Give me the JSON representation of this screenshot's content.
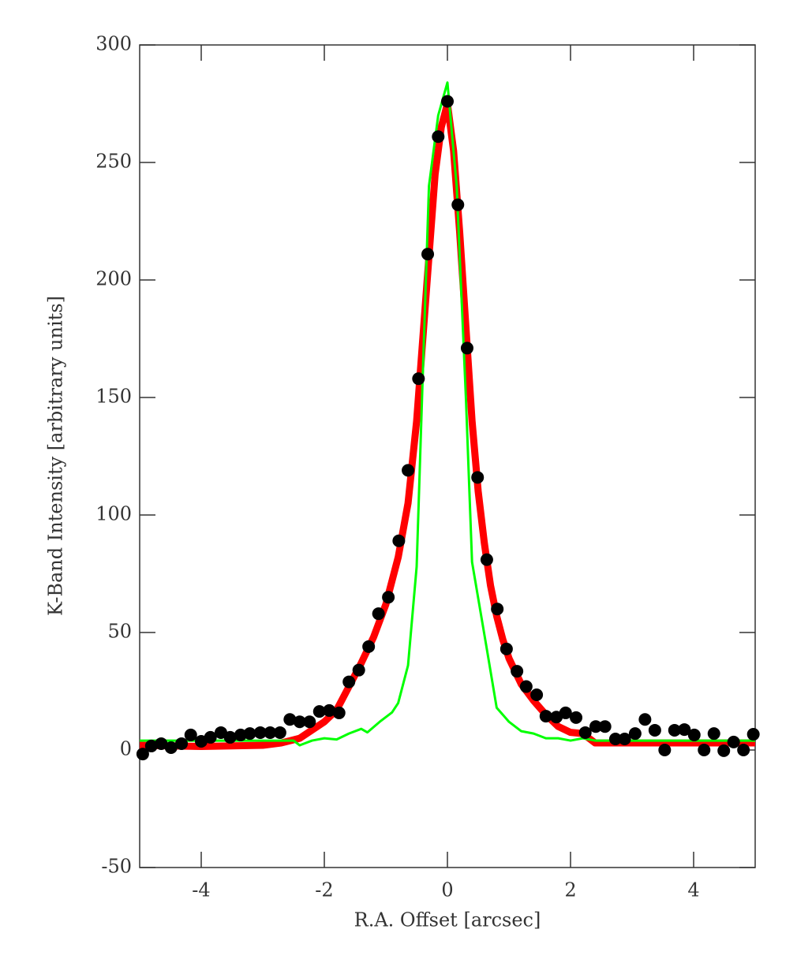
{
  "chart_data": {
    "type": "scatter",
    "xlabel": "R.A. Offset [arcsec]",
    "ylabel": "K-Band Intensity [arbitrary units]",
    "xlim": [
      -5,
      5
    ],
    "ylim": [
      -50,
      300
    ],
    "xticks": [
      -4,
      -2,
      0,
      2,
      4
    ],
    "yticks": [
      -50,
      0,
      50,
      100,
      150,
      200,
      250,
      300
    ],
    "grid": false,
    "lines": [
      {
        "color": "#ff0000",
        "x": [
          -5,
          -4,
          -3,
          -2.7,
          -2.4,
          -2.0,
          -1.8,
          -1.6,
          -1.4,
          -1.2,
          -1.0,
          -0.8,
          -0.64,
          -0.5,
          -0.4,
          -0.3,
          -0.2,
          -0.1,
          0,
          0.1,
          0.2,
          0.3,
          0.4,
          0.5,
          0.6,
          0.7,
          0.8,
          0.9,
          1.0,
          1.2,
          1.4,
          1.6,
          1.8,
          2.0,
          2.2,
          2.4,
          3,
          4,
          5
        ],
        "values": [
          2,
          1.5,
          2,
          3,
          5,
          12,
          17,
          27,
          37,
          48,
          62,
          82,
          105,
          140,
          175,
          210,
          245,
          265,
          275,
          255,
          220,
          180,
          140,
          110,
          88,
          70,
          57,
          47,
          39,
          28,
          21,
          15,
          10,
          7.5,
          7,
          3,
          3,
          3,
          3
        ]
      },
      {
        "color": "#00ff00",
        "x": [
          -5,
          -3,
          -2.5,
          -2.4,
          -2.2,
          -2.0,
          -1.8,
          -1.6,
          -1.4,
          -1.3,
          -1.1,
          -0.9,
          -0.8,
          -0.64,
          -0.5,
          -0.4,
          -0.3,
          -0.15,
          0,
          0.15,
          0.3,
          0.4,
          0.64,
          0.8,
          1.0,
          1.2,
          1.4,
          1.6,
          1.8,
          2.0,
          2.2,
          2.4,
          3,
          5
        ],
        "values": [
          4,
          4,
          4,
          2,
          4,
          5,
          4.5,
          7,
          9,
          7.5,
          12,
          16,
          20,
          36,
          78,
          160,
          240,
          270,
          284,
          240,
          150,
          80,
          43,
          18,
          12,
          8,
          7,
          5,
          5,
          4,
          5,
          4,
          4,
          4
        ]
      }
    ],
    "points": {
      "color": "#000000",
      "x": [
        -4.95,
        -4.81,
        -4.65,
        -4.49,
        -4.32,
        -4.17,
        -4.0,
        -3.85,
        -3.68,
        -3.53,
        -3.36,
        -3.21,
        -3.04,
        -2.88,
        -2.72,
        -2.56,
        -2.4,
        -2.24,
        -2.08,
        -1.92,
        -1.76,
        -1.6,
        -1.44,
        -1.28,
        -1.12,
        -0.96,
        -0.79,
        -0.64,
        -0.47,
        -0.32,
        -0.15,
        0,
        0.17,
        0.32,
        0.49,
        0.64,
        0.81,
        0.96,
        1.13,
        1.28,
        1.45,
        1.6,
        1.77,
        1.92,
        2.09,
        2.24,
        2.41,
        2.56,
        2.73,
        2.88,
        3.05,
        3.21,
        3.37,
        3.53,
        3.69,
        3.85,
        4.01,
        4.17,
        4.33,
        4.49,
        4.65,
        4.81,
        4.97
      ],
      "values": [
        -1.7,
        1.7,
        2.7,
        1,
        2.7,
        6.4,
        3.7,
        5.4,
        7.4,
        5.4,
        6.4,
        7,
        7.4,
        7.4,
        7.4,
        13,
        12,
        12,
        16.4,
        16.8,
        15.8,
        29,
        34,
        44,
        58,
        65,
        89,
        119,
        158,
        211,
        261,
        276,
        232,
        171,
        116,
        81,
        60,
        43,
        33.5,
        27,
        23.5,
        14.4,
        14,
        15.8,
        13.8,
        7.4,
        10,
        10,
        4.7,
        4.7,
        7,
        13,
        8.4,
        0,
        8.4,
        8.7,
        6.4,
        0,
        7,
        -0.3,
        3.4,
        0,
        6.7
      ]
    }
  }
}
